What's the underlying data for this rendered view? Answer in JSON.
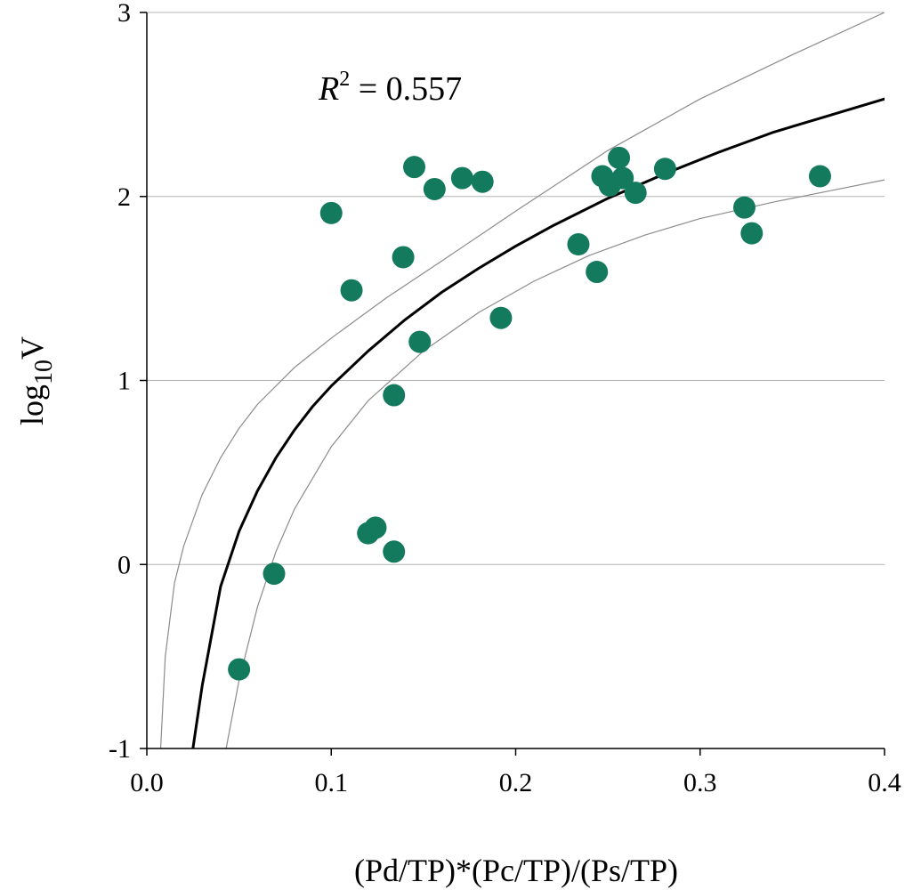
{
  "chart_data": {
    "type": "scatter",
    "title": "",
    "xlabel": "(Pd/TP)*(Pc/TP)/(Ps/TP)",
    "ylabel_main": "log",
    "ylabel_sub": "10",
    "ylabel_tail": "V",
    "annotation": {
      "r_symbol": "R",
      "exponent": "2",
      "value_text": " = 0.557"
    },
    "xlim": [
      0.0,
      0.4
    ],
    "ylim": [
      -1,
      3
    ],
    "x_ticks": [
      0.0,
      0.1,
      0.2,
      0.3,
      0.4
    ],
    "x_tick_labels": [
      "0.0",
      "0.1",
      "0.2",
      "0.3",
      "0.4"
    ],
    "y_ticks": [
      -1,
      0,
      1,
      2,
      3
    ],
    "y_tick_labels": [
      "-1",
      "0",
      "1",
      "2",
      "3"
    ],
    "grid": "horizontal",
    "point_color": "#137a5e",
    "fit_color": "#000000",
    "ci_color": "#8c8c8c",
    "points": [
      {
        "x": 0.05,
        "y": -0.57
      },
      {
        "x": 0.069,
        "y": -0.05
      },
      {
        "x": 0.1,
        "y": 1.91
      },
      {
        "x": 0.111,
        "y": 1.49
      },
      {
        "x": 0.12,
        "y": 0.17
      },
      {
        "x": 0.124,
        "y": 0.2
      },
      {
        "x": 0.134,
        "y": 0.07
      },
      {
        "x": 0.134,
        "y": 0.92
      },
      {
        "x": 0.139,
        "y": 1.67
      },
      {
        "x": 0.145,
        "y": 2.16
      },
      {
        "x": 0.148,
        "y": 1.21
      },
      {
        "x": 0.156,
        "y": 2.04
      },
      {
        "x": 0.171,
        "y": 2.1
      },
      {
        "x": 0.182,
        "y": 2.08
      },
      {
        "x": 0.192,
        "y": 1.34
      },
      {
        "x": 0.234,
        "y": 1.74
      },
      {
        "x": 0.244,
        "y": 1.59
      },
      {
        "x": 0.247,
        "y": 2.11
      },
      {
        "x": 0.251,
        "y": 2.06
      },
      {
        "x": 0.256,
        "y": 2.21
      },
      {
        "x": 0.258,
        "y": 2.1
      },
      {
        "x": 0.265,
        "y": 2.02
      },
      {
        "x": 0.281,
        "y": 2.15
      },
      {
        "x": 0.324,
        "y": 1.94
      },
      {
        "x": 0.328,
        "y": 1.8
      },
      {
        "x": 0.365,
        "y": 2.11
      }
    ],
    "fit_curve": {
      "name": "fit",
      "x": [
        0.025,
        0.03,
        0.04,
        0.05,
        0.06,
        0.07,
        0.08,
        0.09,
        0.1,
        0.12,
        0.14,
        0.16,
        0.18,
        0.2,
        0.22,
        0.25,
        0.28,
        0.31,
        0.34,
        0.37,
        0.4
      ],
      "y": [
        -1.0,
        -0.66,
        -0.12,
        0.18,
        0.4,
        0.58,
        0.73,
        0.86,
        0.97,
        1.16,
        1.33,
        1.48,
        1.61,
        1.73,
        1.84,
        1.99,
        2.12,
        2.24,
        2.35,
        2.44,
        2.53
      ]
    },
    "ci_upper": {
      "name": "upper",
      "x": [
        0.0075,
        0.01,
        0.015,
        0.02,
        0.03,
        0.04,
        0.05,
        0.06,
        0.08,
        0.1,
        0.13,
        0.16,
        0.2,
        0.25,
        0.3,
        0.35,
        0.4
      ],
      "y": [
        -1.0,
        -0.5,
        -0.1,
        0.1,
        0.38,
        0.58,
        0.74,
        0.87,
        1.07,
        1.23,
        1.45,
        1.65,
        1.92,
        2.25,
        2.53,
        2.77,
        3.0
      ]
    },
    "ci_lower": {
      "name": "lower",
      "x": [
        0.043,
        0.05,
        0.06,
        0.07,
        0.08,
        0.1,
        0.12,
        0.15,
        0.18,
        0.21,
        0.24,
        0.27,
        0.3,
        0.34,
        0.37,
        0.4
      ],
      "y": [
        -1.0,
        -0.63,
        -0.23,
        0.07,
        0.3,
        0.64,
        0.89,
        1.16,
        1.37,
        1.54,
        1.68,
        1.79,
        1.88,
        1.97,
        2.03,
        2.09
      ]
    }
  }
}
